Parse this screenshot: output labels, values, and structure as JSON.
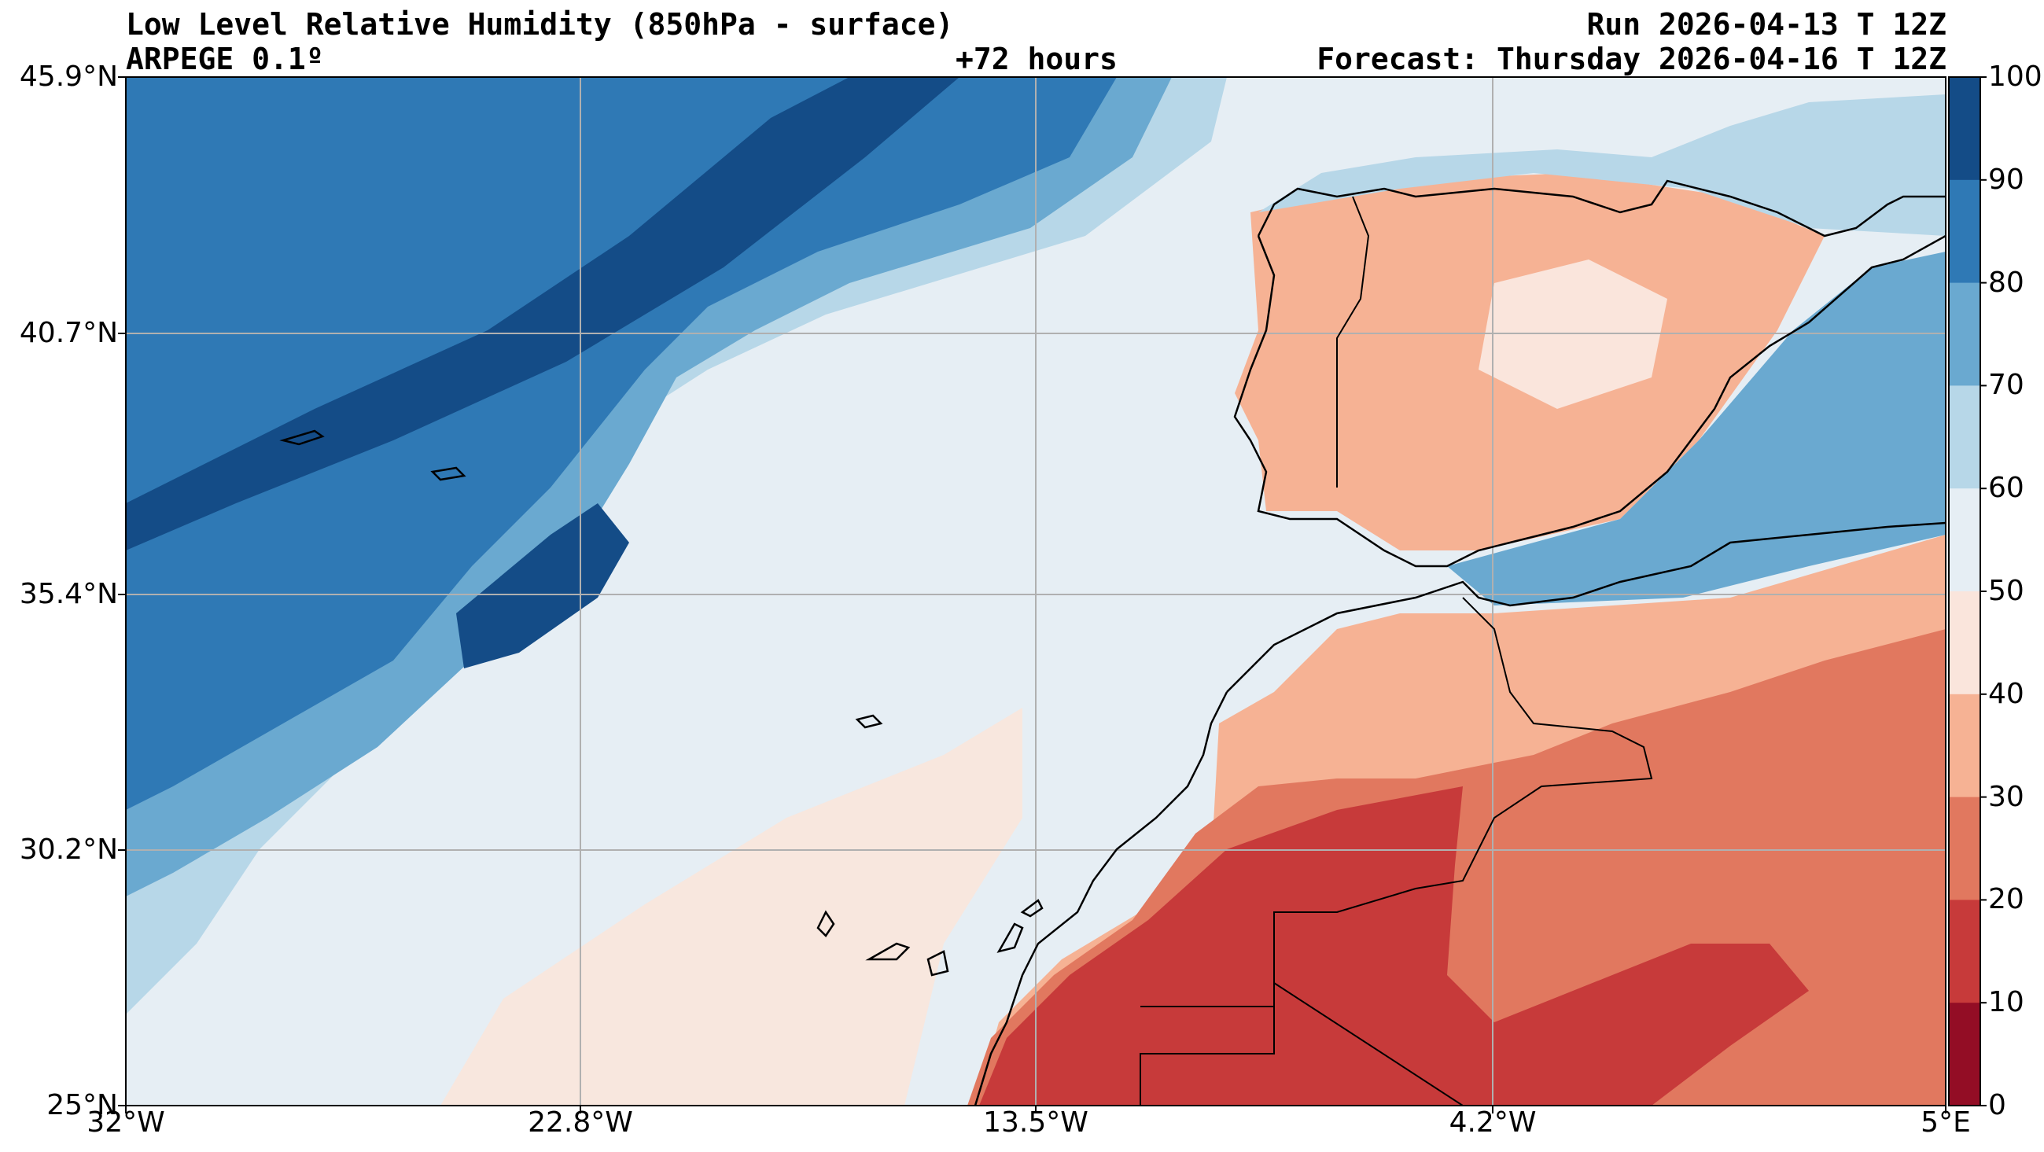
{
  "header": {
    "title": "Low Level Relative Humidity (850hPa - surface)",
    "model": "ARPEGE 0.1º",
    "lead": "+72 hours",
    "run": "Run 2026-04-13 T 12Z",
    "forecast": "Forecast: Thursday 2026-04-16 T 12Z"
  },
  "axes": {
    "lat_labels": [
      "45.9°N",
      "40.7°N",
      "35.4°N",
      "30.2°N",
      "25°N"
    ],
    "lon_labels": [
      "32°W",
      "22.8°W",
      "13.5°W",
      "4.2°W",
      "5°E"
    ]
  },
  "colorbar": {
    "ticks": [
      "100",
      "90",
      "80",
      "70",
      "60",
      "50",
      "40",
      "30",
      "20",
      "10",
      "0"
    ],
    "colors": [
      "#144c87",
      "#2f79b5",
      "#6aa9d0",
      "#b7d7e8",
      "#e6eef4",
      "#fae5dc",
      "#f6b294",
      "#e1785f",
      "#c73a3a",
      "#930d25"
    ]
  },
  "chart_data": {
    "type": "heatmap",
    "title": "Low Level Relative Humidity (850hPa - surface)",
    "units": "%",
    "lat_range": [
      25,
      45.9
    ],
    "lon_range": [
      -32,
      5
    ],
    "levels": [
      0,
      10,
      20,
      30,
      40,
      50,
      60,
      70,
      80,
      90,
      100
    ]
  }
}
